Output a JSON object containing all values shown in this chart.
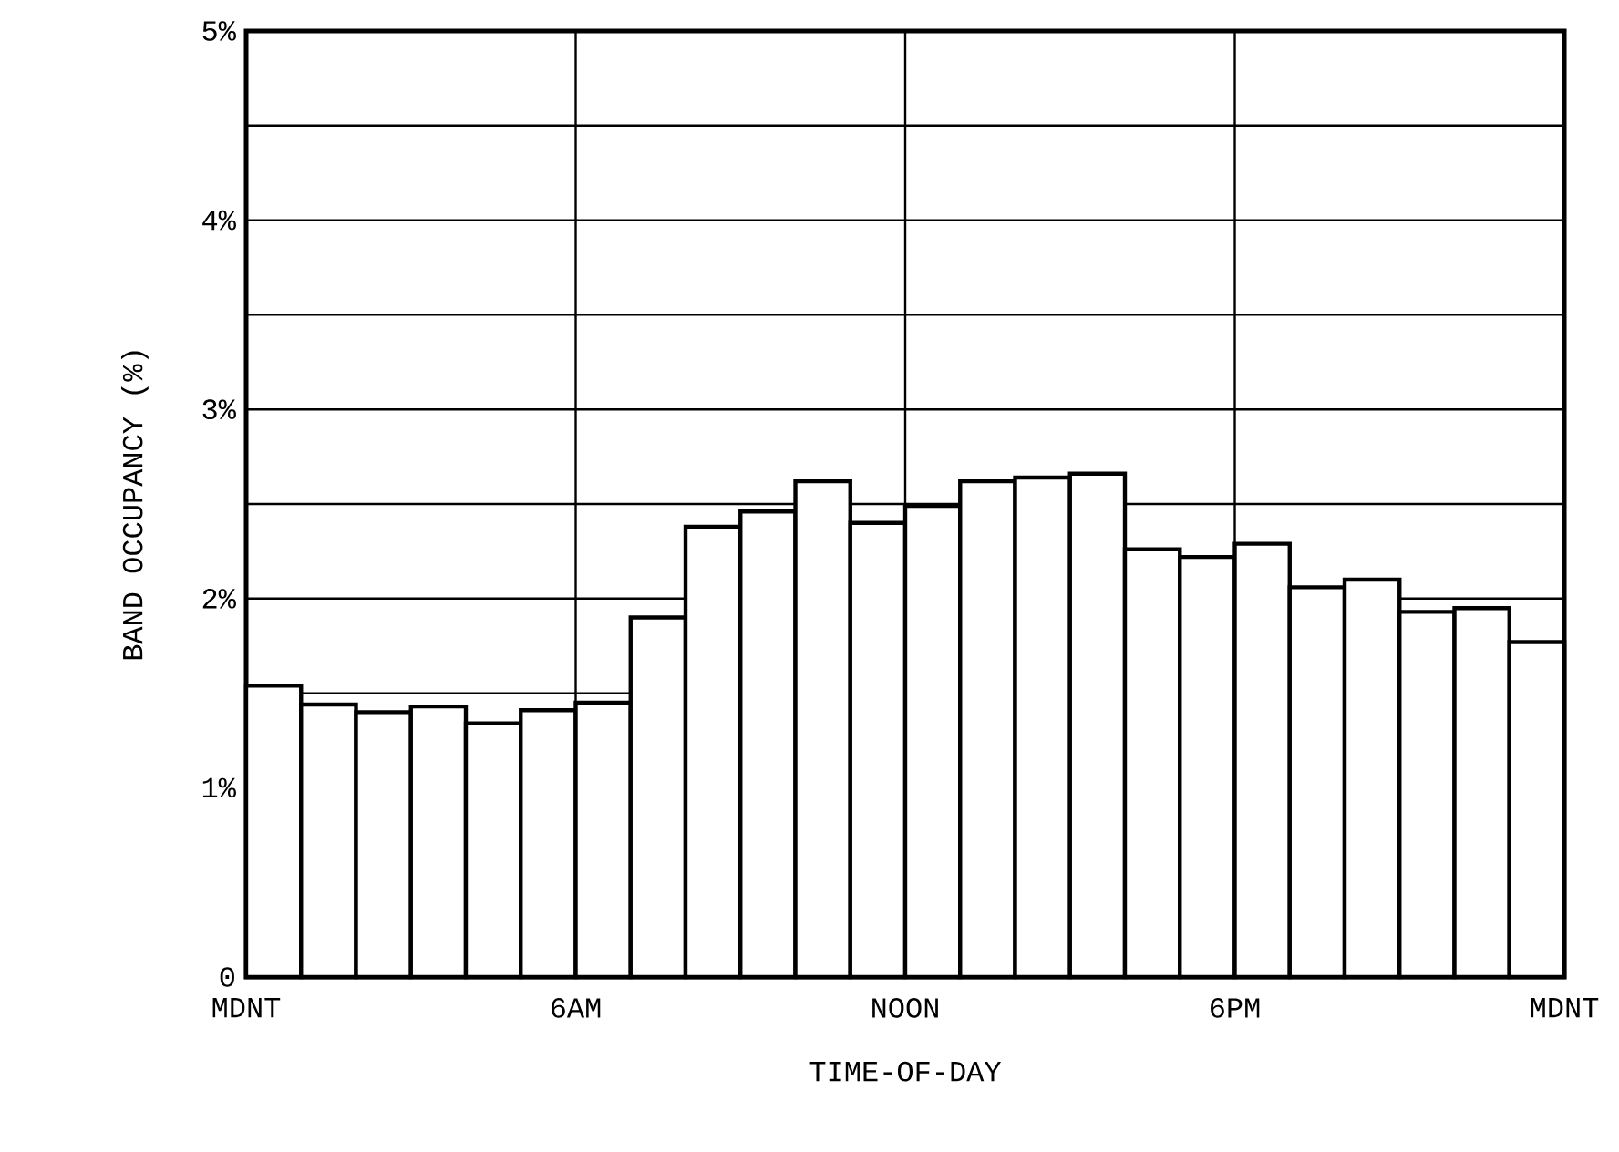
{
  "chart_data": {
    "type": "bar",
    "xlabel": "TIME-OF-DAY",
    "ylabel": "BAND OCCUPANCY (%)",
    "categories": [
      null,
      null,
      null,
      null,
      null,
      null,
      null,
      null,
      null,
      null,
      null,
      null,
      null,
      null,
      null,
      null,
      null,
      null,
      null,
      null,
      null,
      null,
      null,
      null
    ],
    "values": [
      1.54,
      1.44,
      1.4,
      1.43,
      1.34,
      1.41,
      1.45,
      1.9,
      2.38,
      2.46,
      2.62,
      2.4,
      2.49,
      2.62,
      2.64,
      2.66,
      2.26,
      2.22,
      2.29,
      2.06,
      2.1,
      1.93,
      1.95,
      1.77
    ],
    "color": "#ffffff",
    "annotations": [
      "MDNT",
      "6AM",
      "NOON",
      "6PM",
      "MDNT"
    ],
    "ylim": [
      0,
      5
    ],
    "yticks": [
      0,
      {
        "value": 0.5,
        "label": null
      },
      {
        "value": 1,
        "label": "1%"
      },
      {
        "value": 1.5,
        "label": null
      },
      {
        "value": 2,
        "label": "2%"
      },
      {
        "value": 2.5,
        "label": null
      },
      {
        "value": 3,
        "label": "3%"
      },
      {
        "value": 3.5,
        "label": null
      },
      {
        "value": 4,
        "label": "4%"
      },
      {
        "value": 4.5,
        "label": null
      },
      {
        "value": 5,
        "label": "5%"
      }
    ],
    "grid": true
  }
}
